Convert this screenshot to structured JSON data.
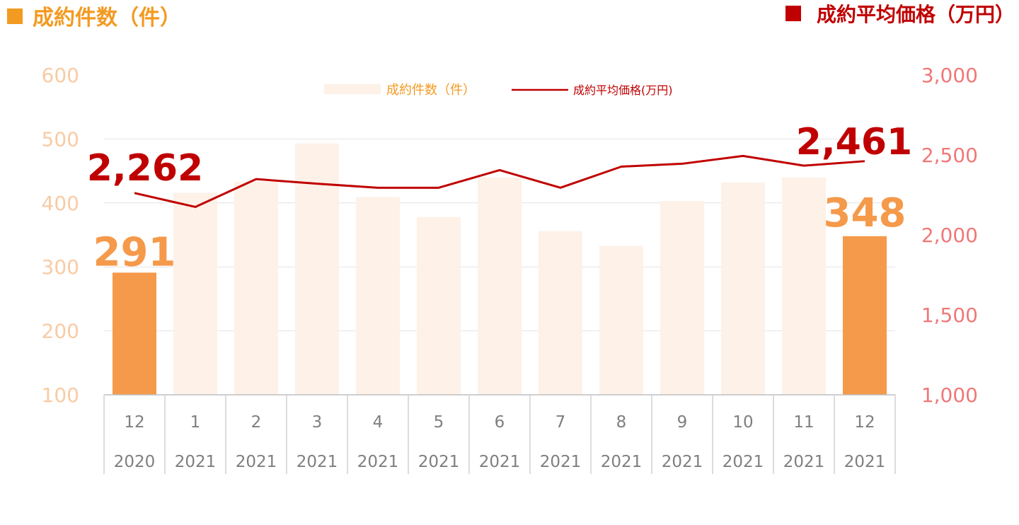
{
  "header": {
    "left_title": "成約件数（件）",
    "right_title": "成約平均価格（万円）"
  },
  "colors": {
    "accent_orange": "#F39A21",
    "bar_highlight": "#F5994A",
    "bar_muted": "#FDF1E8",
    "line_red": "#C00000",
    "left_axis_text": "#F8CBA4",
    "right_axis_text": "#F07878",
    "right_title_square": "#C00000"
  },
  "chart_data": {
    "type": "bar",
    "categories": [
      "12",
      "1",
      "2",
      "3",
      "4",
      "5",
      "6",
      "7",
      "8",
      "9",
      "10",
      "11",
      "12"
    ],
    "years": [
      "2020",
      "2021",
      "2021",
      "2021",
      "2021",
      "2021",
      "2021",
      "2021",
      "2021",
      "2021",
      "2021",
      "2021",
      "2021"
    ],
    "series": [
      {
        "name": "成約件数（件）",
        "kind": "bar",
        "axis": "left",
        "values": [
          291,
          416,
          433,
          493,
          409,
          378,
          440,
          356,
          333,
          403,
          432,
          440,
          348
        ],
        "highlighted": [
          true,
          false,
          false,
          false,
          false,
          false,
          false,
          false,
          false,
          false,
          false,
          false,
          true
        ]
      },
      {
        "name": "成約平均価格(万円)",
        "kind": "line",
        "axis": "right",
        "values": [
          2262,
          2175,
          2349,
          2320,
          2295,
          2295,
          2405,
          2295,
          2427,
          2445,
          2494,
          2433,
          2461
        ]
      }
    ],
    "left_axis": {
      "min": 100,
      "max": 600,
      "ticks": [
        "600",
        "500",
        "400",
        "300",
        "200",
        "100"
      ]
    },
    "right_axis": {
      "min": 1000,
      "max": 3000,
      "ticks": [
        "3,000",
        "2,500",
        "2,000",
        "1,500",
        "1,000"
      ]
    },
    "labels": {
      "first_bar": "291",
      "last_bar": "348",
      "first_line": "2,262",
      "last_line": "2,461"
    },
    "legend": {
      "placement": "top-center",
      "bar_label": "成約件数（件）",
      "line_label": "成約平均価格(万円)"
    },
    "grid": true
  }
}
